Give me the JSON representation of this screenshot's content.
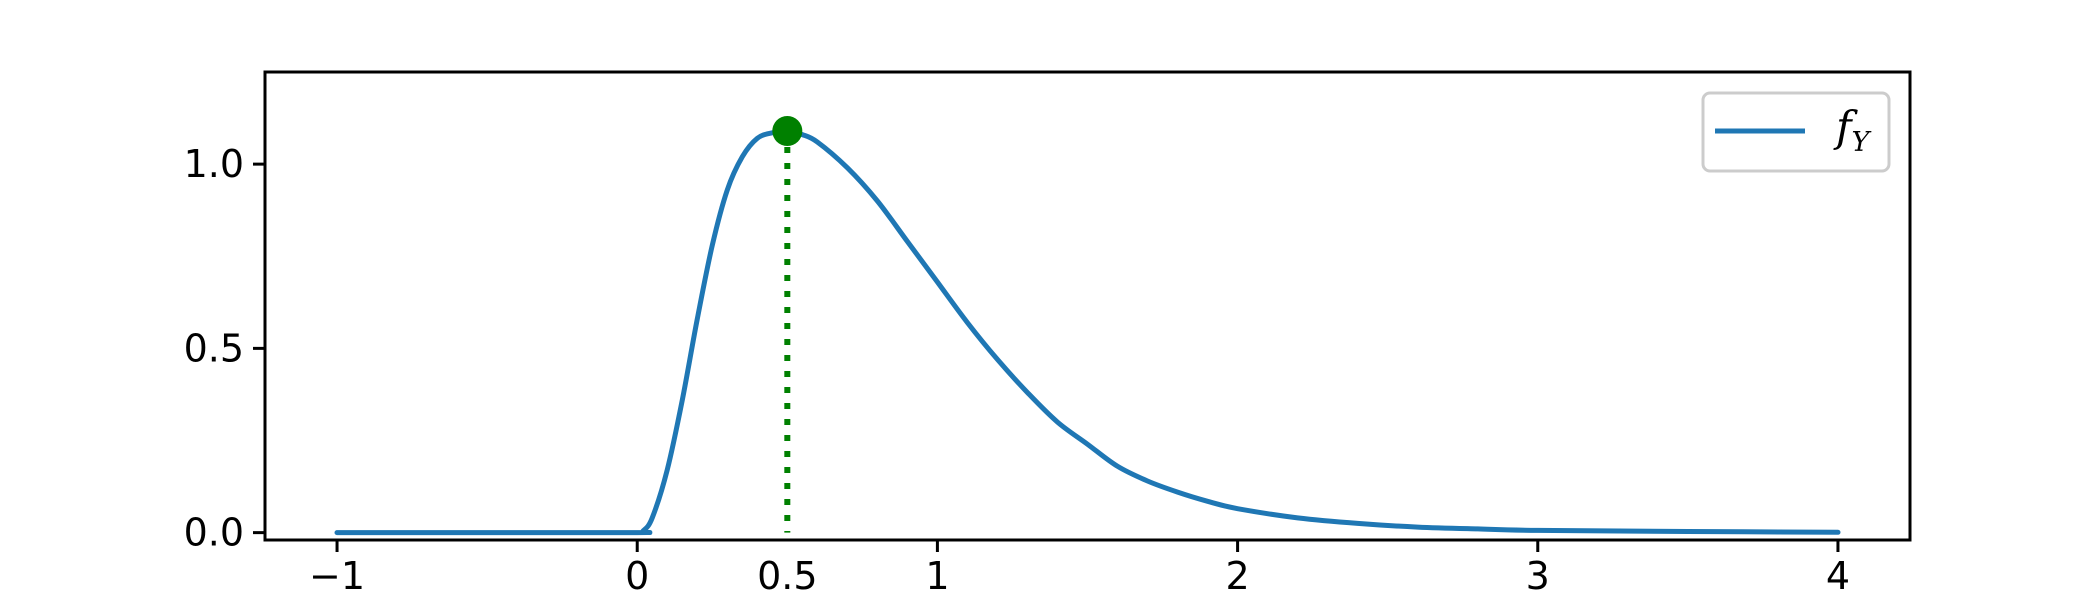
{
  "chart_data": {
    "type": "line",
    "title": "",
    "xlabel": "",
    "ylabel": "",
    "xlim": [
      -1.24,
      4.24
    ],
    "ylim": [
      -0.02,
      1.25
    ],
    "grid": false,
    "x_ticks": [
      {
        "value": -1,
        "label": "−1"
      },
      {
        "value": 0,
        "label": "0"
      },
      {
        "value": 1,
        "label": "1"
      },
      {
        "value": 2,
        "label": "2"
      },
      {
        "value": 3,
        "label": "3"
      },
      {
        "value": 4,
        "label": "4"
      }
    ],
    "y_ticks": [
      {
        "value": 0.0,
        "label": "0.0"
      },
      {
        "value": 0.5,
        "label": "0.5"
      },
      {
        "value": 1.0,
        "label": "1.0"
      }
    ],
    "legend": {
      "placement": "top-right",
      "entry": {
        "main": "f",
        "sub": "Y"
      }
    },
    "series": [
      {
        "name": "fY",
        "color": "#1f77b4",
        "x": [
          -1,
          -0.5,
          0,
          0.02,
          0.05,
          0.1,
          0.15,
          0.2,
          0.25,
          0.3,
          0.35,
          0.4,
          0.45,
          0.5,
          0.55,
          0.6,
          0.7,
          0.8,
          0.9,
          1.0,
          1.1,
          1.2,
          1.3,
          1.4,
          1.5,
          1.6,
          1.7,
          1.8,
          1.9,
          2.0,
          2.2,
          2.4,
          2.6,
          2.8,
          3.0,
          3.5,
          4.0
        ],
        "y": [
          0,
          0,
          0,
          0.005,
          0.04,
          0.17,
          0.36,
          0.58,
          0.78,
          0.93,
          1.02,
          1.07,
          1.085,
          1.09,
          1.08,
          1.06,
          0.99,
          0.9,
          0.79,
          0.68,
          0.57,
          0.47,
          0.38,
          0.3,
          0.24,
          0.18,
          0.14,
          0.11,
          0.085,
          0.065,
          0.04,
          0.025,
          0.015,
          0.01,
          0.006,
          0.003,
          0.001
        ]
      }
    ],
    "marker": {
      "x": 0.5,
      "y": 1.09,
      "label": "0.5",
      "color": "#008000",
      "style": "dotted vertical line to x-axis"
    }
  }
}
